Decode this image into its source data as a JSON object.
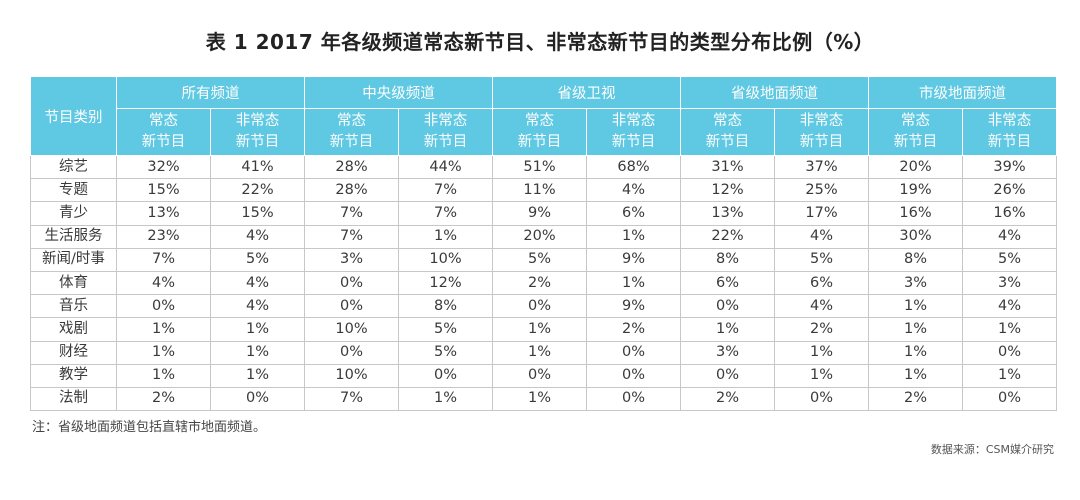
{
  "title": "表 1  2017 年各级频道常态新节目、非常态新节目的类型分布比例（%）",
  "header": {
    "category_label": "节目类别",
    "groups": [
      "所有频道",
      "中央级频道",
      "省级卫视",
      "省级地面频道",
      "市级地面频道"
    ],
    "sub_line1": [
      "常态",
      "非常态",
      "常态",
      "非常态",
      "常态",
      "非常态",
      "常态",
      "非常态",
      "常态",
      "非常态"
    ],
    "sub_line2": [
      "新节目",
      "新节目",
      "新节目",
      "新节目",
      "新节目",
      "新节目",
      "新节目",
      "新节目",
      "新节目",
      "新节目"
    ]
  },
  "rows": [
    {
      "category": "综艺",
      "values": [
        "32%",
        "41%",
        "28%",
        "44%",
        "51%",
        "68%",
        "31%",
        "37%",
        "20%",
        "39%"
      ]
    },
    {
      "category": "专题",
      "values": [
        "15%",
        "22%",
        "28%",
        "7%",
        "11%",
        "4%",
        "12%",
        "25%",
        "19%",
        "26%"
      ]
    },
    {
      "category": "青少",
      "values": [
        "13%",
        "15%",
        "7%",
        "7%",
        "9%",
        "6%",
        "13%",
        "17%",
        "16%",
        "16%"
      ]
    },
    {
      "category": "生活服务",
      "values": [
        "23%",
        "4%",
        "7%",
        "1%",
        "20%",
        "1%",
        "22%",
        "4%",
        "30%",
        "4%"
      ]
    },
    {
      "category": "新闻/时事",
      "values": [
        "7%",
        "5%",
        "3%",
        "10%",
        "5%",
        "9%",
        "8%",
        "5%",
        "8%",
        "5%"
      ]
    },
    {
      "category": "体育",
      "values": [
        "4%",
        "4%",
        "0%",
        "12%",
        "2%",
        "1%",
        "6%",
        "6%",
        "3%",
        "3%"
      ]
    },
    {
      "category": "音乐",
      "values": [
        "0%",
        "4%",
        "0%",
        "8%",
        "0%",
        "9%",
        "0%",
        "4%",
        "1%",
        "4%"
      ]
    },
    {
      "category": "戏剧",
      "values": [
        "1%",
        "1%",
        "10%",
        "5%",
        "1%",
        "2%",
        "1%",
        "2%",
        "1%",
        "1%"
      ]
    },
    {
      "category": "财经",
      "values": [
        "1%",
        "1%",
        "0%",
        "5%",
        "1%",
        "0%",
        "3%",
        "1%",
        "1%",
        "0%"
      ]
    },
    {
      "category": "教学",
      "values": [
        "1%",
        "1%",
        "10%",
        "0%",
        "0%",
        "0%",
        "0%",
        "1%",
        "1%",
        "1%"
      ]
    },
    {
      "category": "法制",
      "values": [
        "2%",
        "0%",
        "7%",
        "1%",
        "1%",
        "0%",
        "2%",
        "0%",
        "2%",
        "0%"
      ]
    }
  ],
  "note": "注：省级地面频道包括直辖市地面频道。",
  "source": "数据来源：CSM媒介研究",
  "colors": {
    "header_bg": "#5fc8e2",
    "header_text": "#ffffff",
    "grid": "#c7c7c7"
  }
}
